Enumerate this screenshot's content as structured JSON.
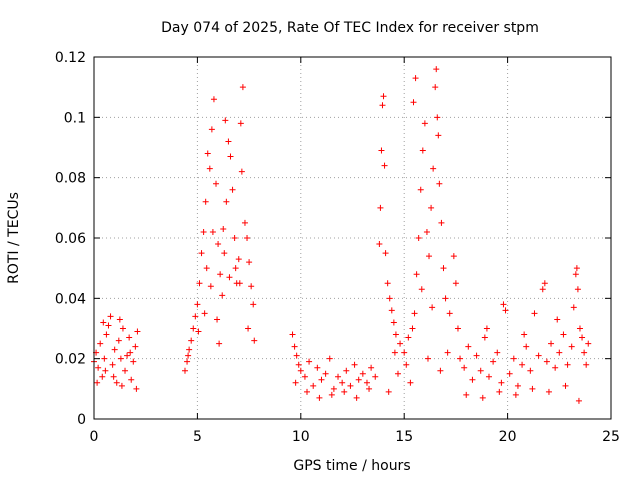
{
  "chart_data": {
    "type": "scatter",
    "title": "Day 074 of 2025, Rate Of TEC Index for receiver stpm",
    "xlabel": "GPS time / hours",
    "ylabel": "ROTI / TECUs",
    "xlim": [
      0,
      25
    ],
    "ylim": [
      0,
      0.12
    ],
    "xticks": [
      0,
      5,
      10,
      15,
      20,
      25
    ],
    "xtick_labels": [
      "0",
      "5",
      "10",
      "15",
      "20",
      "25"
    ],
    "yticks": [
      0,
      0.02,
      0.04,
      0.06,
      0.08,
      0.1,
      0.12
    ],
    "ytick_labels": [
      "0",
      "0.02",
      "0.04",
      "0.06",
      "0.08",
      "0.1",
      "0.12"
    ],
    "grid": true,
    "marker": "plus",
    "marker_color": "#ff0000",
    "series": [
      {
        "name": "ROTI",
        "points": [
          [
            0.0,
            0.019
          ],
          [
            0.1,
            0.022
          ],
          [
            0.2,
            0.017
          ],
          [
            0.3,
            0.025
          ],
          [
            0.4,
            0.014
          ],
          [
            0.5,
            0.02
          ],
          [
            0.6,
            0.028
          ],
          [
            0.7,
            0.031
          ],
          [
            0.8,
            0.034
          ],
          [
            0.9,
            0.018
          ],
          [
            1.0,
            0.023
          ],
          [
            1.1,
            0.012
          ],
          [
            1.2,
            0.026
          ],
          [
            1.3,
            0.02
          ],
          [
            1.4,
            0.03
          ],
          [
            1.5,
            0.016
          ],
          [
            1.6,
            0.021
          ],
          [
            1.7,
            0.027
          ],
          [
            1.8,
            0.013
          ],
          [
            1.9,
            0.019
          ],
          [
            2.0,
            0.024
          ],
          [
            2.1,
            0.029
          ],
          [
            0.15,
            0.012
          ],
          [
            0.55,
            0.016
          ],
          [
            0.95,
            0.014
          ],
          [
            1.35,
            0.011
          ],
          [
            1.75,
            0.022
          ],
          [
            2.05,
            0.01
          ],
          [
            0.45,
            0.032
          ],
          [
            1.25,
            0.033
          ],
          [
            4.4,
            0.016
          ],
          [
            4.5,
            0.019
          ],
          [
            4.6,
            0.023
          ],
          [
            4.7,
            0.026
          ],
          [
            4.8,
            0.03
          ],
          [
            4.9,
            0.034
          ],
          [
            5.0,
            0.038
          ],
          [
            5.1,
            0.045
          ],
          [
            5.2,
            0.055
          ],
          [
            5.3,
            0.062
          ],
          [
            5.4,
            0.072
          ],
          [
            5.5,
            0.088
          ],
          [
            5.6,
            0.083
          ],
          [
            5.7,
            0.096
          ],
          [
            5.8,
            0.106
          ],
          [
            5.9,
            0.078
          ],
          [
            6.0,
            0.058
          ],
          [
            6.1,
            0.048
          ],
          [
            6.2,
            0.041
          ],
          [
            6.3,
            0.055
          ],
          [
            6.4,
            0.072
          ],
          [
            6.5,
            0.092
          ],
          [
            6.6,
            0.087
          ],
          [
            6.7,
            0.076
          ],
          [
            6.8,
            0.06
          ],
          [
            6.9,
            0.045
          ],
          [
            7.0,
            0.053
          ],
          [
            7.1,
            0.098
          ],
          [
            7.2,
            0.11
          ],
          [
            7.3,
            0.065
          ],
          [
            7.4,
            0.06
          ],
          [
            7.5,
            0.052
          ],
          [
            7.6,
            0.044
          ],
          [
            7.7,
            0.038
          ],
          [
            5.05,
            0.029
          ],
          [
            5.35,
            0.035
          ],
          [
            5.65,
            0.044
          ],
          [
            5.95,
            0.033
          ],
          [
            6.25,
            0.063
          ],
          [
            6.55,
            0.047
          ],
          [
            6.85,
            0.05
          ],
          [
            7.15,
            0.082
          ],
          [
            7.45,
            0.03
          ],
          [
            7.75,
            0.026
          ],
          [
            6.35,
            0.099
          ],
          [
            5.45,
            0.05
          ],
          [
            4.55,
            0.021
          ],
          [
            6.05,
            0.025
          ],
          [
            7.05,
            0.045
          ],
          [
            5.75,
            0.062
          ],
          [
            9.6,
            0.028
          ],
          [
            9.7,
            0.024
          ],
          [
            9.8,
            0.021
          ],
          [
            9.9,
            0.018
          ],
          [
            10.0,
            0.016
          ],
          [
            10.2,
            0.014
          ],
          [
            10.4,
            0.019
          ],
          [
            10.6,
            0.011
          ],
          [
            10.8,
            0.017
          ],
          [
            11.0,
            0.013
          ],
          [
            11.2,
            0.015
          ],
          [
            11.4,
            0.02
          ],
          [
            11.6,
            0.01
          ],
          [
            11.8,
            0.014
          ],
          [
            12.0,
            0.012
          ],
          [
            12.2,
            0.016
          ],
          [
            12.4,
            0.011
          ],
          [
            12.6,
            0.018
          ],
          [
            12.8,
            0.013
          ],
          [
            13.0,
            0.015
          ],
          [
            13.2,
            0.012
          ],
          [
            13.4,
            0.017
          ],
          [
            13.6,
            0.014
          ],
          [
            9.75,
            0.012
          ],
          [
            10.3,
            0.009
          ],
          [
            10.9,
            0.007
          ],
          [
            11.5,
            0.008
          ],
          [
            12.1,
            0.009
          ],
          [
            12.7,
            0.007
          ],
          [
            13.3,
            0.01
          ],
          [
            13.8,
            0.058
          ],
          [
            13.85,
            0.07
          ],
          [
            13.9,
            0.089
          ],
          [
            13.95,
            0.104
          ],
          [
            14.0,
            0.107
          ],
          [
            14.05,
            0.084
          ],
          [
            14.1,
            0.055
          ],
          [
            14.2,
            0.045
          ],
          [
            14.3,
            0.04
          ],
          [
            14.4,
            0.036
          ],
          [
            14.5,
            0.032
          ],
          [
            14.6,
            0.028
          ],
          [
            14.8,
            0.025
          ],
          [
            15.0,
            0.022
          ],
          [
            15.2,
            0.027
          ],
          [
            15.4,
            0.03
          ],
          [
            15.5,
            0.035
          ],
          [
            15.6,
            0.048
          ],
          [
            15.7,
            0.06
          ],
          [
            15.8,
            0.076
          ],
          [
            15.9,
            0.089
          ],
          [
            16.0,
            0.098
          ],
          [
            16.1,
            0.062
          ],
          [
            16.2,
            0.054
          ],
          [
            16.3,
            0.07
          ],
          [
            16.4,
            0.083
          ],
          [
            16.5,
            0.11
          ],
          [
            16.55,
            0.116
          ],
          [
            16.6,
            0.1
          ],
          [
            16.65,
            0.094
          ],
          [
            16.7,
            0.078
          ],
          [
            16.8,
            0.065
          ],
          [
            16.9,
            0.05
          ],
          [
            17.0,
            0.04
          ],
          [
            17.2,
            0.035
          ],
          [
            17.4,
            0.054
          ],
          [
            17.6,
            0.03
          ],
          [
            14.7,
            0.015
          ],
          [
            15.1,
            0.018
          ],
          [
            15.3,
            0.012
          ],
          [
            16.15,
            0.02
          ],
          [
            16.75,
            0.016
          ],
          [
            17.1,
            0.022
          ],
          [
            15.45,
            0.105
          ],
          [
            15.55,
            0.113
          ],
          [
            14.25,
            0.009
          ],
          [
            17.5,
            0.045
          ],
          [
            16.35,
            0.037
          ],
          [
            15.85,
            0.043
          ],
          [
            14.55,
            0.022
          ],
          [
            17.7,
            0.02
          ],
          [
            17.9,
            0.017
          ],
          [
            18.1,
            0.024
          ],
          [
            18.3,
            0.013
          ],
          [
            18.5,
            0.021
          ],
          [
            18.7,
            0.016
          ],
          [
            18.9,
            0.027
          ],
          [
            19.1,
            0.014
          ],
          [
            19.3,
            0.019
          ],
          [
            19.5,
            0.022
          ],
          [
            19.7,
            0.012
          ],
          [
            19.8,
            0.038
          ],
          [
            19.9,
            0.036
          ],
          [
            20.1,
            0.015
          ],
          [
            20.3,
            0.02
          ],
          [
            20.5,
            0.011
          ],
          [
            20.7,
            0.018
          ],
          [
            20.9,
            0.024
          ],
          [
            21.1,
            0.016
          ],
          [
            21.3,
            0.035
          ],
          [
            21.5,
            0.021
          ],
          [
            21.7,
            0.043
          ],
          [
            21.8,
            0.045
          ],
          [
            21.9,
            0.019
          ],
          [
            22.1,
            0.025
          ],
          [
            22.3,
            0.017
          ],
          [
            22.5,
            0.022
          ],
          [
            22.7,
            0.028
          ],
          [
            22.9,
            0.018
          ],
          [
            23.1,
            0.024
          ],
          [
            23.2,
            0.037
          ],
          [
            23.3,
            0.048
          ],
          [
            23.35,
            0.05
          ],
          [
            23.4,
            0.043
          ],
          [
            23.5,
            0.03
          ],
          [
            23.6,
            0.027
          ],
          [
            23.7,
            0.022
          ],
          [
            23.8,
            0.018
          ],
          [
            23.9,
            0.025
          ],
          [
            18.0,
            0.008
          ],
          [
            18.8,
            0.007
          ],
          [
            19.6,
            0.009
          ],
          [
            20.4,
            0.008
          ],
          [
            21.2,
            0.01
          ],
          [
            22.0,
            0.009
          ],
          [
            22.8,
            0.011
          ],
          [
            23.45,
            0.006
          ],
          [
            19.0,
            0.03
          ],
          [
            20.8,
            0.028
          ],
          [
            22.4,
            0.033
          ]
        ]
      }
    ]
  }
}
